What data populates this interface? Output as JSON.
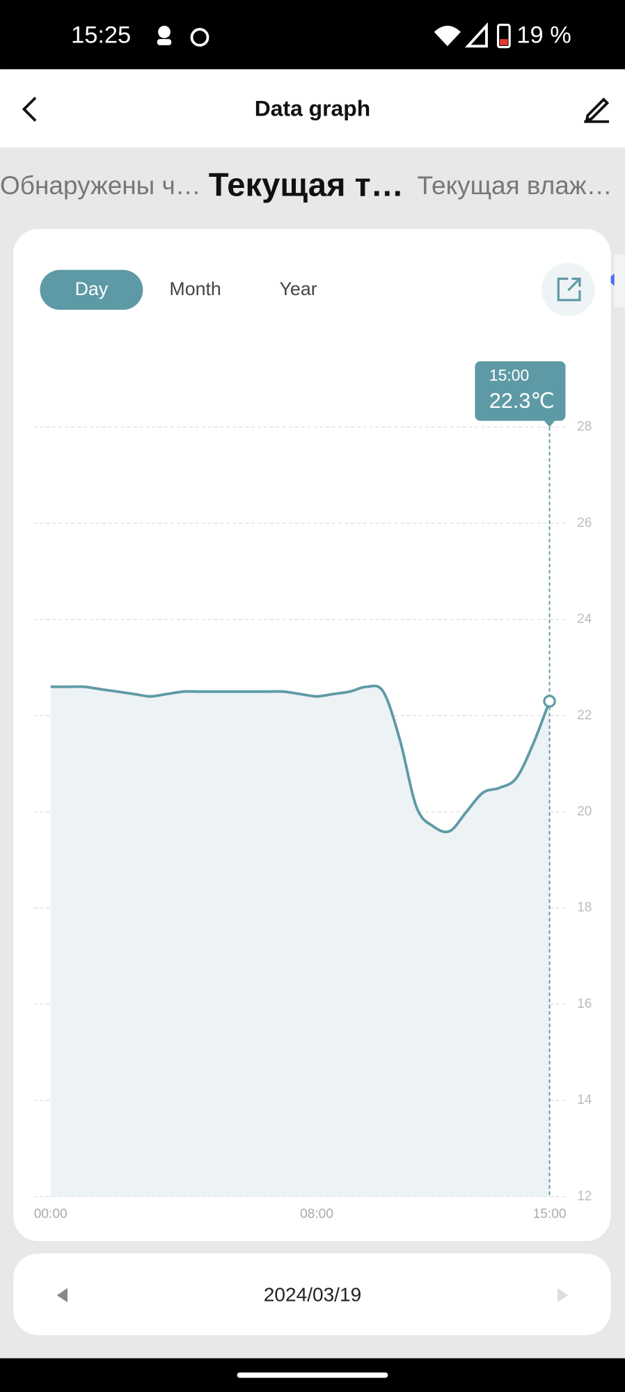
{
  "status_bar": {
    "time": "15:25",
    "battery": "19 %"
  },
  "header": {
    "title": "Data graph"
  },
  "tabs": [
    "Обнаружены ч…",
    "Текущая т…",
    "Текущая влаж…"
  ],
  "ranges": [
    "Day",
    "Month",
    "Year"
  ],
  "chart_data": {
    "type": "line",
    "x": [
      0,
      0.5,
      1,
      1.5,
      2,
      2.5,
      3,
      3.5,
      4,
      4.5,
      5,
      5.5,
      6,
      6.5,
      7,
      7.5,
      8,
      8.5,
      9,
      9.5,
      10,
      10.5,
      11,
      11.5,
      12,
      12.5,
      13,
      13.5,
      14,
      14.5,
      15
    ],
    "series": [
      {
        "color": "#5e9aa5",
        "values": [
          22.6,
          22.6,
          22.6,
          22.55,
          22.5,
          22.45,
          22.4,
          22.45,
          22.5,
          22.5,
          22.5,
          22.5,
          22.5,
          22.5,
          22.5,
          22.45,
          22.4,
          22.45,
          22.5,
          22.6,
          22.5,
          21.5,
          20.1,
          19.7,
          19.6,
          20.0,
          20.4,
          20.5,
          20.7,
          21.4,
          22.3
        ]
      }
    ],
    "xlim": [
      0,
      15
    ],
    "xticks": [
      {
        "value": 0,
        "label": "00:00"
      },
      {
        "value": 8,
        "label": "08:00"
      },
      {
        "value": 15,
        "label": "15:00"
      }
    ],
    "ylim": [
      12,
      28
    ],
    "yticks": [
      12,
      14,
      16,
      18,
      20,
      22,
      24,
      26,
      28
    ],
    "grid": true,
    "tooltip_label": "22.3℃"
  },
  "date": "2024/03/19"
}
